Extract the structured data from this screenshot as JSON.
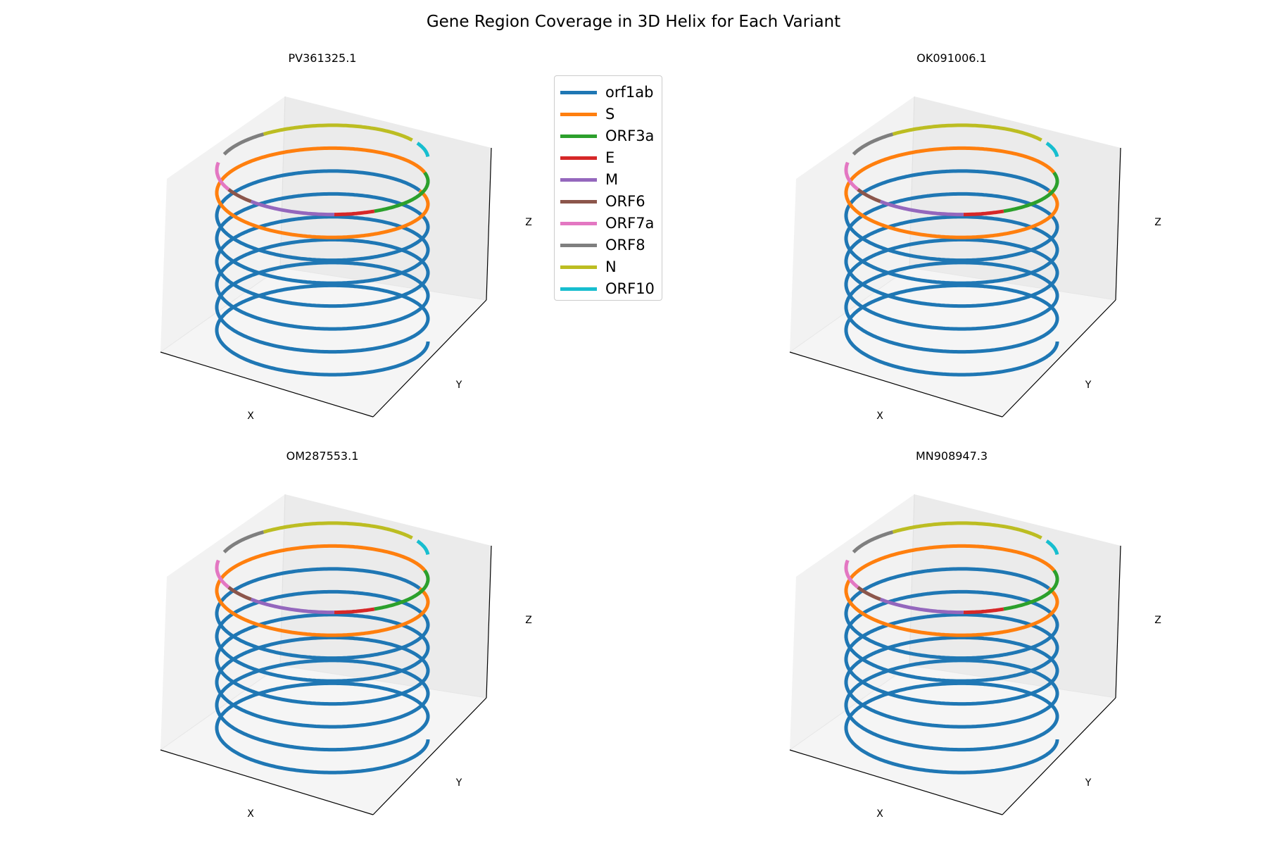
{
  "title": "Gene Region Coverage in 3D Helix for Each Variant",
  "chart_data": {
    "type": "line",
    "subtype": "3d-helix",
    "axis_labels": {
      "x": "X",
      "y": "Y",
      "z": "Z"
    },
    "tick_labels": "none",
    "grid": false,
    "legend_placement": "top-center",
    "helix_turns": 8,
    "genes": [
      {
        "name": "orf1ab",
        "color": "#1f77b4",
        "start": 0.0,
        "end": 0.742
      },
      {
        "name": "S",
        "color": "#ff7f0e",
        "start": 0.742,
        "end": 0.87
      },
      {
        "name": "ORF3a",
        "color": "#2ca02c",
        "start": 0.87,
        "end": 0.896
      },
      {
        "name": "E",
        "color": "#d62728",
        "start": 0.896,
        "end": 0.904
      },
      {
        "name": "M",
        "color": "#9467bd",
        "start": 0.904,
        "end": 0.921
      },
      {
        "name": "ORF6",
        "color": "#8c564b",
        "start": 0.921,
        "end": 0.928
      },
      {
        "name": "ORF7a",
        "color": "#e377c2",
        "start": 0.928,
        "end": 0.941
      },
      {
        "name": "ORF8",
        "color": "#7f7f7f",
        "start": 0.945,
        "end": 0.957
      },
      {
        "name": "N",
        "color": "#bcbd22",
        "start": 0.957,
        "end": 0.989
      },
      {
        "name": "ORF10",
        "color": "#17becf",
        "start": 0.991,
        "end": 0.999
      }
    ],
    "panels": [
      {
        "title": "PV361325.1"
      },
      {
        "title": "OK091006.1"
      },
      {
        "title": "OM287553.1"
      },
      {
        "title": "MN908947.3"
      }
    ]
  }
}
